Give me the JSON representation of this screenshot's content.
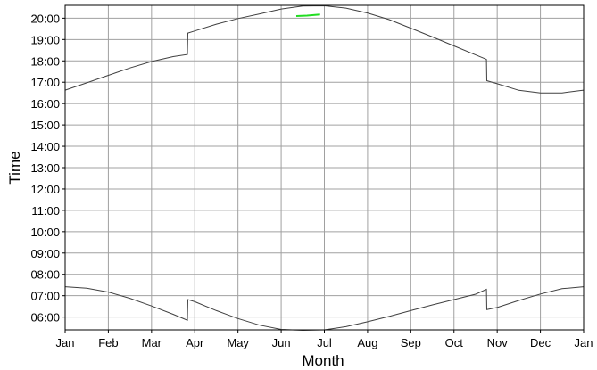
{
  "chart_data": {
    "type": "line",
    "title": "",
    "xlabel": "Month",
    "ylabel": "Time",
    "x_tick_labels": [
      "Jan",
      "Feb",
      "Mar",
      "Apr",
      "May",
      "Jun",
      "Jul",
      "Aug",
      "Sep",
      "Oct",
      "Nov",
      "Dec",
      "Jan"
    ],
    "y_tick_labels": [
      "06:00",
      "07:00",
      "08:00",
      "09:00",
      "10:00",
      "11:00",
      "12:00",
      "13:00",
      "14:00",
      "15:00",
      "16:00",
      "17:00",
      "18:00",
      "19:00",
      "20:00"
    ],
    "xlim_months": [
      0,
      12
    ],
    "ylim_hours": [
      5.4,
      20.6
    ],
    "grid": true,
    "legend": "none",
    "colors": {
      "curves": "#404040",
      "highlight": "#22dd22",
      "grid": "#a0a0a0",
      "axes": "#000000"
    },
    "series": [
      {
        "x": [
          0,
          0.5,
          1,
          1.5,
          2,
          2.5,
          2.83,
          2.84,
          3,
          3.5,
          4,
          4.5,
          5,
          5.5,
          6,
          6.5,
          7,
          7.5,
          8,
          8.5,
          9,
          9.5,
          9.75,
          9.76,
          10,
          10.5,
          11,
          11.5,
          12
        ],
        "y": [
          16.63,
          16.97,
          17.32,
          17.67,
          17.97,
          18.2,
          18.3,
          19.3,
          19.4,
          19.72,
          19.98,
          20.2,
          20.43,
          20.57,
          20.58,
          20.47,
          20.24,
          19.93,
          19.53,
          19.12,
          18.7,
          18.28,
          18.07,
          17.07,
          16.93,
          16.62,
          16.5,
          16.5,
          16.63
        ]
      },
      {
        "x": [
          0,
          0.5,
          1,
          1.5,
          2,
          2.5,
          2.83,
          2.84,
          3,
          3.5,
          4,
          4.5,
          5,
          5.5,
          6,
          6.5,
          7,
          7.5,
          8,
          8.5,
          9,
          9.5,
          9.75,
          9.76,
          10,
          10.5,
          11,
          11.5,
          12
        ],
        "y": [
          7.42,
          7.35,
          7.17,
          6.88,
          6.52,
          6.13,
          5.85,
          6.82,
          6.72,
          6.3,
          5.93,
          5.62,
          5.42,
          5.38,
          5.4,
          5.55,
          5.78,
          6.03,
          6.3,
          6.57,
          6.82,
          7.07,
          7.3,
          6.35,
          6.45,
          6.78,
          7.08,
          7.33,
          7.42
        ]
      },
      {
        "x": [
          5.35,
          5.6,
          5.9
        ],
        "y": [
          20.1,
          20.12,
          20.17
        ]
      }
    ]
  }
}
